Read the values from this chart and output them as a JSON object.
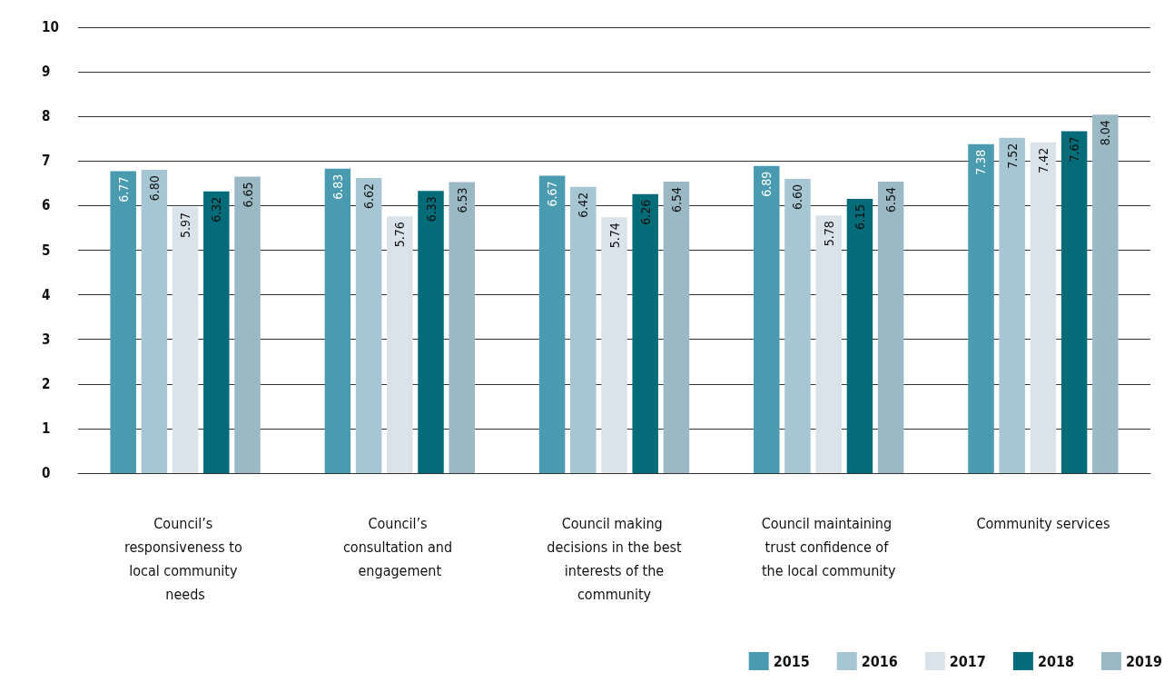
{
  "chart_data": {
    "type": "bar",
    "categories": [
      "Council’s responsiveness to local community needs",
      "Council’s consultation and engagement",
      "Council making decisions in the best interests of the community",
      "Council maintaining trust confidence of the local community",
      "Community services"
    ],
    "series": [
      {
        "name": "2015",
        "color": "#4a9bb0",
        "values": [
          6.77,
          6.83,
          6.67,
          6.89,
          7.38
        ],
        "value_labels": [
          "6.77",
          "6.83",
          "6.67",
          "6.89",
          "7.38"
        ]
      },
      {
        "name": "2016",
        "color": "#a5c6d2",
        "values": [
          6.8,
          6.62,
          6.42,
          6.6,
          7.52
        ],
        "value_labels": [
          "6.80",
          "6.62",
          "6.42",
          "6.60",
          "7.52"
        ]
      },
      {
        "name": "2017",
        "color": "#d9e3e9",
        "values": [
          5.97,
          5.76,
          5.74,
          5.78,
          7.42
        ],
        "value_labels": [
          "5.97",
          "5.76",
          "5.74",
          "5.78",
          "7.42"
        ]
      },
      {
        "name": "2018",
        "color": "#046b78",
        "values": [
          6.32,
          6.33,
          6.26,
          6.15,
          7.67
        ],
        "value_labels": [
          "6.32",
          "6.33",
          "6.26",
          "6.15",
          "7.67"
        ]
      },
      {
        "name": "2019",
        "color": "#9bb9c5",
        "values": [
          6.65,
          6.53,
          6.54,
          6.54,
          8.04
        ],
        "value_labels": [
          "6.65",
          "6.53",
          "6.54",
          "6.54",
          "8.04"
        ]
      }
    ],
    "ylim": [
      0,
      10
    ],
    "yticks": [
      0,
      1,
      2,
      3,
      4,
      5,
      6,
      7,
      8,
      9,
      10
    ],
    "grid": "y",
    "legend": "bottom right"
  }
}
